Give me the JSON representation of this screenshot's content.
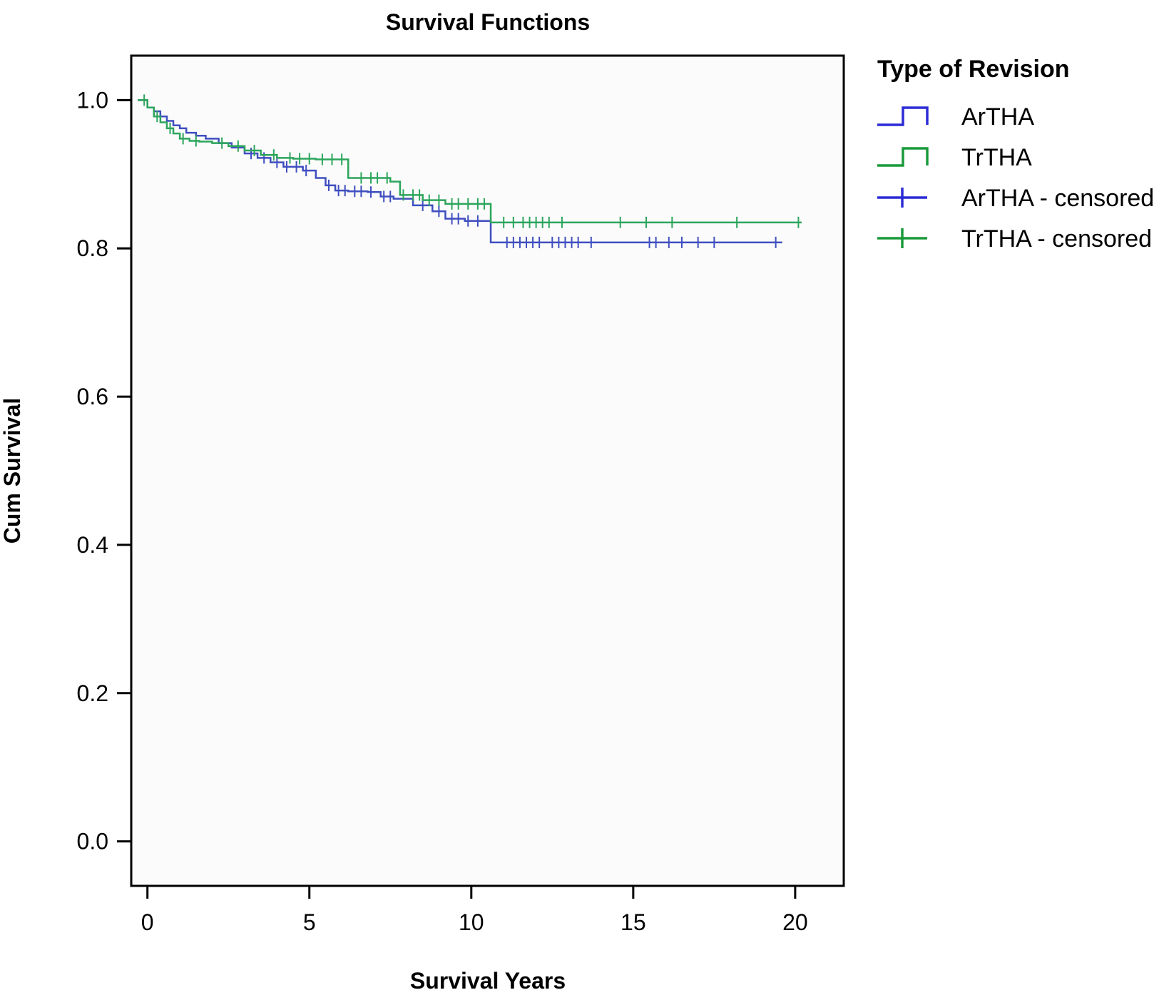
{
  "chart_data": {
    "type": "line",
    "subtype": "kaplan-meier step",
    "title": "Survival Functions",
    "xlabel": "Survival Years",
    "ylabel": "Cum Survival",
    "xlim": [
      -0.5,
      21.5
    ],
    "ylim": [
      -0.06,
      1.06
    ],
    "xticks": [
      0,
      5,
      10,
      15,
      20
    ],
    "xtick_labels": [
      "0",
      "5",
      "10",
      "15",
      "20"
    ],
    "yticks": [
      0.0,
      0.2,
      0.4,
      0.6,
      0.8,
      1.0
    ],
    "ytick_labels": [
      "0.0",
      "0.2",
      "0.4",
      "0.6",
      "0.8",
      "1.0"
    ],
    "grid": false,
    "legend": {
      "title": "Type of Revision",
      "placement": "outside-right-top",
      "entries": [
        {
          "label": "ArTHA",
          "kind": "step",
          "color": "#2b2bd6"
        },
        {
          "label": "TrTHA",
          "kind": "step",
          "color": "#1a9a3a"
        },
        {
          "label": "ArTHA - censored",
          "kind": "censor",
          "color": "#2b2bd6"
        },
        {
          "label": "TrTHA - censored",
          "kind": "censor",
          "color": "#1a9a3a"
        }
      ]
    },
    "series": [
      {
        "name": "ArTHA",
        "color": "#3f4fbf",
        "x": [
          -0.3,
          0.0,
          0.2,
          0.4,
          0.6,
          0.8,
          1.0,
          1.2,
          1.5,
          1.8,
          2.2,
          2.6,
          3.0,
          3.4,
          3.8,
          4.2,
          4.8,
          5.2,
          5.5,
          5.8,
          6.2,
          6.8,
          7.2,
          7.6,
          8.2,
          8.8,
          9.2,
          9.8,
          10.6,
          19.6
        ],
        "y": [
          1.0,
          0.99,
          0.985,
          0.978,
          0.972,
          0.966,
          0.962,
          0.956,
          0.952,
          0.948,
          0.942,
          0.936,
          0.928,
          0.922,
          0.916,
          0.91,
          0.905,
          0.895,
          0.885,
          0.878,
          0.877,
          0.876,
          0.87,
          0.867,
          0.858,
          0.85,
          0.84,
          0.837,
          0.808,
          0.808
        ],
        "censored_x": [
          3.2,
          3.6,
          4.0,
          4.3,
          4.6,
          4.9,
          5.6,
          5.9,
          6.1,
          6.4,
          6.6,
          6.9,
          7.3,
          7.5,
          8.5,
          9.0,
          9.4,
          9.6,
          9.9,
          10.2,
          11.1,
          11.3,
          11.5,
          11.7,
          11.9,
          12.1,
          12.5,
          12.7,
          12.9,
          13.1,
          13.3,
          13.7,
          15.5,
          15.7,
          16.1,
          16.5,
          17.0,
          17.5,
          19.4
        ]
      },
      {
        "name": "TrTHA",
        "color": "#2ca55c",
        "x": [
          -0.3,
          0.0,
          0.2,
          0.4,
          0.6,
          0.8,
          1.0,
          1.3,
          1.6,
          2.0,
          2.5,
          3.0,
          3.5,
          4.0,
          4.5,
          5.2,
          6.2,
          7.5,
          7.8,
          8.5,
          9.2,
          10.6,
          20.2
        ],
        "y": [
          1.0,
          0.99,
          0.978,
          0.97,
          0.962,
          0.955,
          0.948,
          0.945,
          0.944,
          0.942,
          0.938,
          0.932,
          0.926,
          0.922,
          0.921,
          0.92,
          0.895,
          0.89,
          0.872,
          0.865,
          0.86,
          0.835,
          0.835
        ],
        "censored_x": [
          -0.1,
          0.3,
          0.7,
          1.1,
          1.5,
          2.3,
          2.8,
          3.3,
          3.9,
          4.4,
          4.7,
          5.0,
          5.4,
          5.7,
          6.0,
          6.6,
          6.9,
          7.1,
          7.4,
          7.9,
          8.2,
          8.4,
          8.7,
          9.0,
          9.4,
          9.6,
          9.9,
          10.2,
          10.4,
          11.0,
          11.3,
          11.6,
          11.8,
          12.0,
          12.2,
          12.4,
          12.8,
          14.6,
          15.4,
          16.2,
          18.2,
          20.1
        ]
      }
    ]
  }
}
